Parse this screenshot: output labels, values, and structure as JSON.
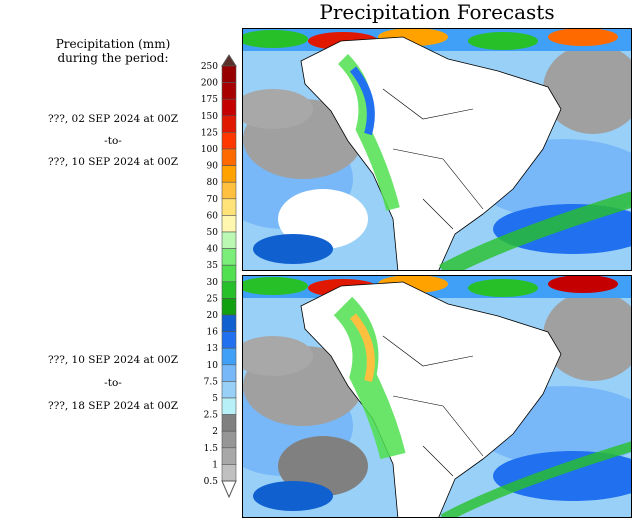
{
  "title": "Precipitation Forecasts",
  "legend_heading": [
    "Precipitation (mm)",
    "during the period:"
  ],
  "periods": [
    {
      "start": "???, 02 SEP 2024 at 00Z",
      "sep": "-to-",
      "end": "???, 10 SEP 2024 at 00Z"
    },
    {
      "start": "???, 10 SEP 2024 at 00Z",
      "sep": "-to-",
      "end": "???, 18 SEP 2024 at 00Z"
    }
  ],
  "chart_data": {
    "type": "heatmap",
    "title": "Precipitation Forecasts",
    "units": "mm",
    "colorbar": {
      "labels": [
        "250",
        "200",
        "175",
        "150",
        "125",
        "100",
        "90",
        "80",
        "70",
        "60",
        "50",
        "40",
        "35",
        "30",
        "25",
        "20",
        "16",
        "13",
        "10",
        "7.5",
        "5",
        "2.5",
        "2",
        "1.5",
        "1",
        "0.5"
      ],
      "colors": [
        "#960000",
        "#a80000",
        "#c40000",
        "#e01800",
        "#ff3800",
        "#ff6a00",
        "#ffa200",
        "#ffc040",
        "#ffe278",
        "#fff6b0",
        "#baf8b4",
        "#7aee78",
        "#50e050",
        "#28c028",
        "#10a010",
        "#1060d0",
        "#2070f0",
        "#40a0f8",
        "#78b8f8",
        "#98d0f8",
        "#b8f0f8",
        "#808080",
        "#969696",
        "#a8a8a8",
        "#c0c0c0"
      ],
      "over_color": "#5a3028",
      "under_color": "#ffffff"
    },
    "panels": [
      "2024-09-02 00Z to 2024-09-10 00Z",
      "2024-09-10 00Z to 2024-09-18 00Z"
    ]
  }
}
